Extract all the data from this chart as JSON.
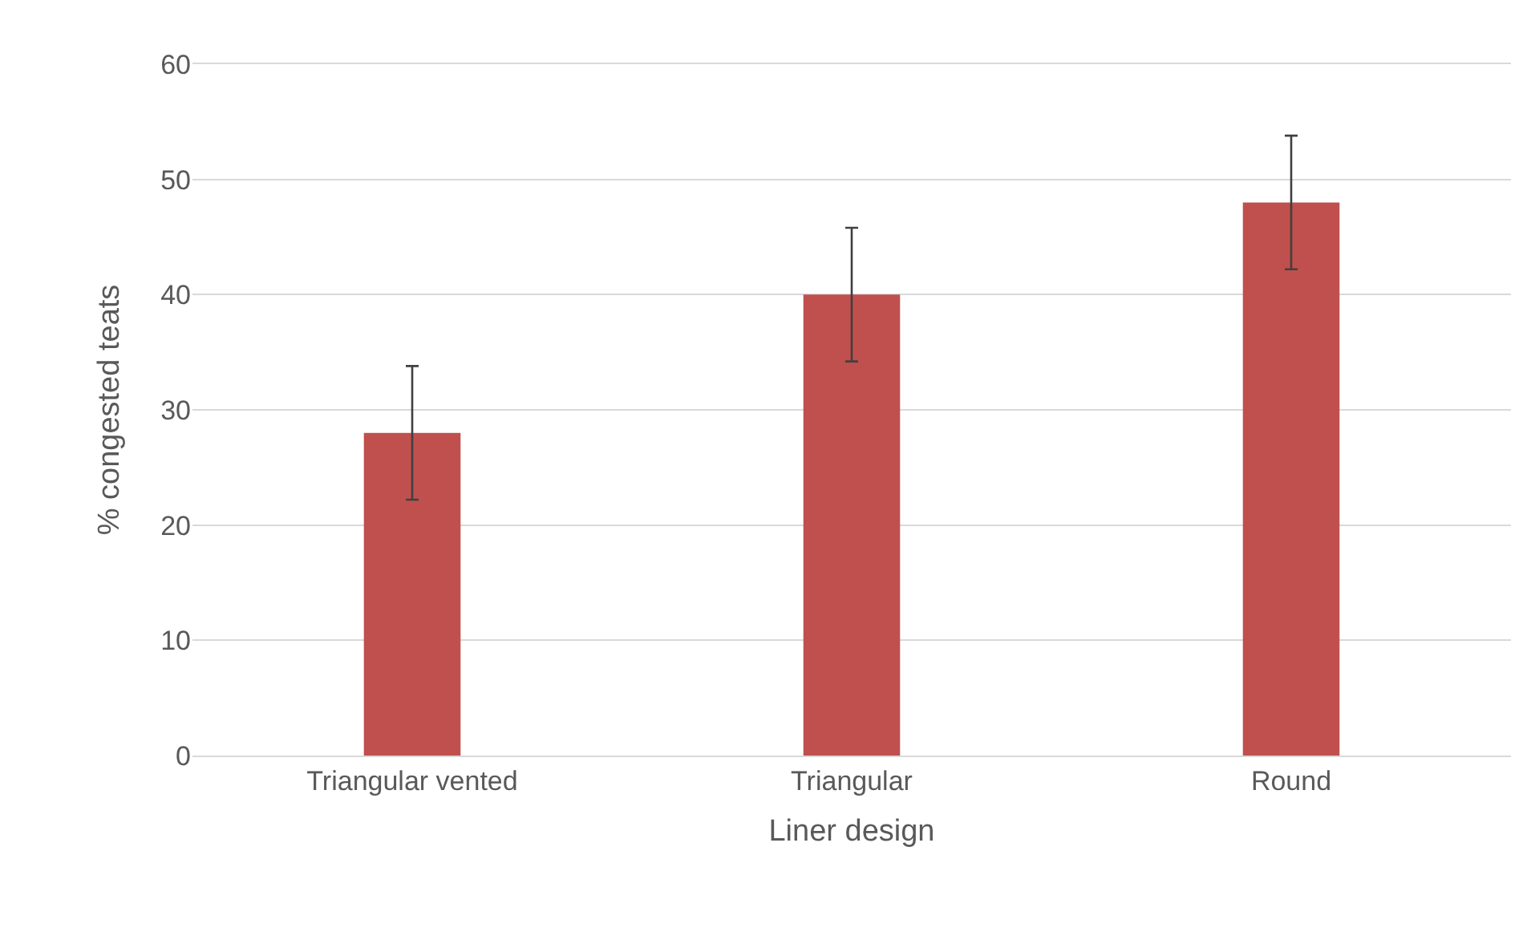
{
  "chart_data": {
    "type": "bar",
    "xlabel": "Liner design",
    "ylabel": "% congested teats",
    "categories": [
      "Triangular vented",
      "Triangular",
      "Round"
    ],
    "series": [
      {
        "color": "#c0504d",
        "values": [
          28,
          40,
          48
        ],
        "errors": [
          5.8,
          5.8,
          5.8
        ]
      }
    ],
    "ylim": [
      0,
      60
    ],
    "yticks": [
      0,
      10,
      20,
      30,
      40,
      50,
      60
    ],
    "grid": "y"
  }
}
